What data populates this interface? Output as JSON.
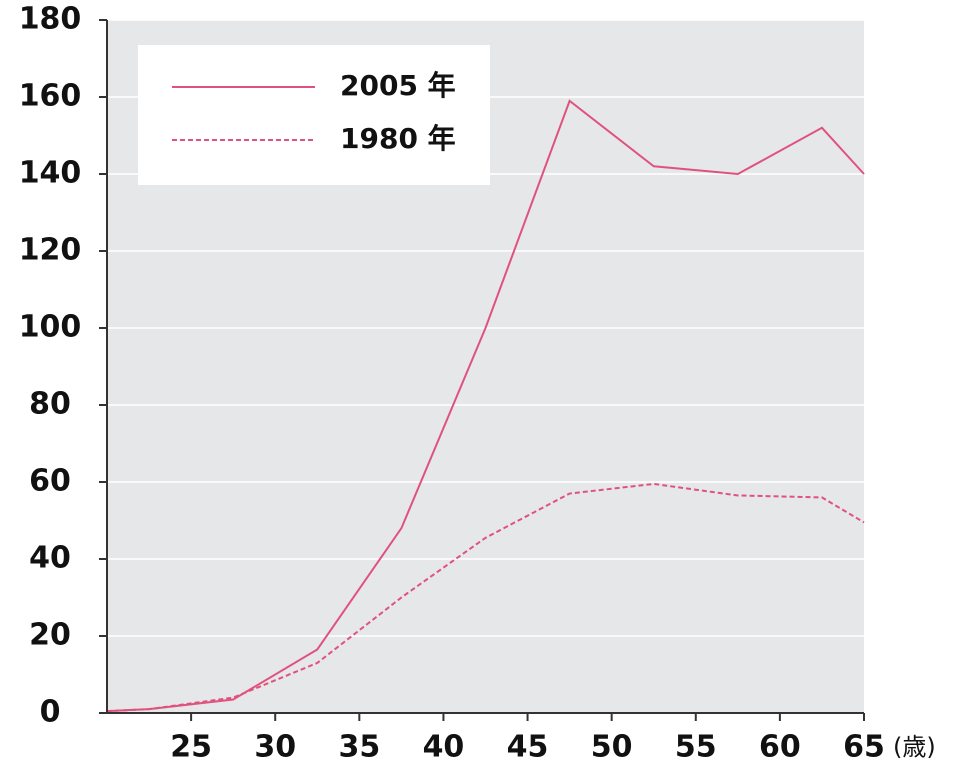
{
  "chart_data": {
    "type": "line",
    "x_label": "(歳)",
    "xlim": [
      20,
      65
    ],
    "xticks": [
      25,
      30,
      35,
      40,
      45,
      50,
      55,
      60,
      65
    ],
    "ylim": [
      0,
      180
    ],
    "yticks": [
      0,
      20,
      40,
      60,
      80,
      100,
      120,
      140,
      160,
      180
    ],
    "grid": true,
    "legend": "upper left",
    "series": [
      {
        "name": "2005 年",
        "color": "#e0527e",
        "style": "solid",
        "x": [
          20,
          22.5,
          27.5,
          32.5,
          37.5,
          42.5,
          47.5,
          52.5,
          57.5,
          62.5,
          65
        ],
        "values": [
          0.5,
          1,
          3.5,
          16.5,
          48,
          100,
          159,
          142,
          140,
          152,
          140
        ]
      },
      {
        "name": "1980 年",
        "color": "#e0527e",
        "style": "dashed",
        "x": [
          20,
          22.5,
          27.5,
          32.5,
          37.5,
          42.5,
          47.5,
          52.5,
          57.5,
          62.5,
          65
        ],
        "values": [
          0.5,
          1,
          4,
          13,
          30,
          45.5,
          57,
          59.5,
          56.5,
          56,
          49.5
        ]
      }
    ]
  }
}
